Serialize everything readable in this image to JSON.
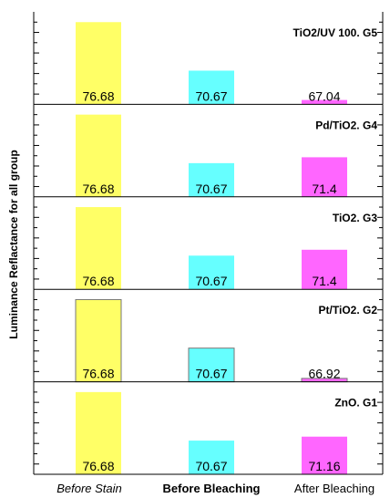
{
  "chart_data": {
    "type": "bar",
    "ylabel": "Luminance Reflactance for all group",
    "categories": [
      "Before Stain",
      "Before Bleaching",
      "After Bleaching"
    ],
    "category_styles": [
      "italic",
      "bold",
      "normal"
    ],
    "colors": {
      "before_stain": "#ffff66",
      "before_bleaching": "#66ffff",
      "after_bleaching": "#ff66ff"
    },
    "panels": [
      {
        "title": "TiO2/UV 100. G5",
        "values": [
          76.68,
          70.67,
          67.04
        ],
        "labels": [
          "76.68",
          "70.67",
          "67.04"
        ],
        "outlined": false
      },
      {
        "title": "Pd/TiO2. G4",
        "values": [
          76.68,
          70.67,
          71.4
        ],
        "labels": [
          "76.68",
          "70.67",
          "71.4"
        ],
        "outlined": false
      },
      {
        "title": "TiO2. G3",
        "values": [
          76.68,
          70.67,
          71.4
        ],
        "labels": [
          "76.68",
          "70.67",
          "71.4"
        ],
        "outlined": false
      },
      {
        "title": "Pt/TiO2. G2",
        "values": [
          76.68,
          70.67,
          66.92
        ],
        "labels": [
          "76.68",
          "70.67",
          "66.92"
        ],
        "outlined": true
      },
      {
        "title": "ZnO. G1",
        "values": [
          76.68,
          70.67,
          71.16
        ],
        "labels": [
          "76.68",
          "70.67",
          "71.16"
        ],
        "outlined": false
      }
    ],
    "ylim": [
      66.5,
      77.5
    ],
    "grid": false,
    "legend": "none"
  }
}
